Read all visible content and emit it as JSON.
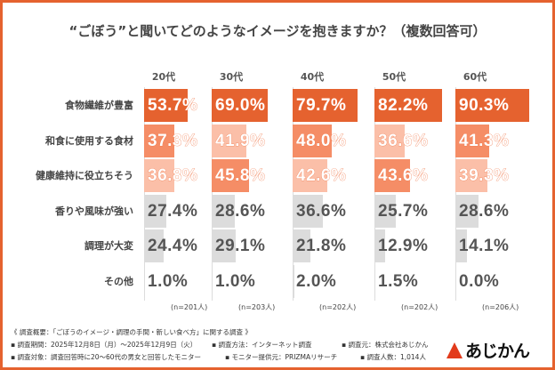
{
  "chart_data": {
    "type": "bar",
    "title": "“ごぼう”と聞いてどのようなイメージを抱きますか？（複数回答可）",
    "categories": [
      "食物繊維が豊富",
      "和食に使用する食材",
      "健康維持に役立ちそう",
      "香りや風味が強い",
      "調理が大変",
      "その他"
    ],
    "unit": "%",
    "xlim": [
      0,
      100
    ],
    "panels": [
      {
        "name": "20代",
        "n": "(n=201人)",
        "values": [
          53.7,
          37.3,
          36.8,
          27.4,
          24.4,
          1.0
        ],
        "labels": [
          "53.7%",
          "37.3%",
          "36.8%",
          "27.4%",
          "24.4%",
          "1.0%"
        ]
      },
      {
        "name": "30代",
        "n": "(n=203人)",
        "values": [
          69.0,
          41.9,
          45.8,
          28.6,
          29.1,
          1.0
        ],
        "labels": [
          "69.0%",
          "41.9%",
          "45.8%",
          "28.6%",
          "29.1%",
          "1.0%"
        ]
      },
      {
        "name": "40代",
        "n": "(n=202人)",
        "values": [
          79.7,
          48.0,
          42.6,
          36.6,
          21.8,
          2.0
        ],
        "labels": [
          "79.7%",
          "48.0%",
          "42.6%",
          "36.6%",
          "21.8%",
          "2.0%"
        ]
      },
      {
        "name": "50代",
        "n": "(n=202人)",
        "values": [
          82.2,
          36.6,
          43.6,
          25.7,
          12.9,
          1.5
        ],
        "labels": [
          "82.2%",
          "36.6%",
          "43.6%",
          "25.7%",
          "12.9%",
          "1.5%"
        ]
      },
      {
        "name": "60代",
        "n": "(n=206人)",
        "values": [
          90.3,
          41.3,
          39.3,
          28.6,
          14.1,
          0.0
        ],
        "labels": [
          "90.3%",
          "41.3%",
          "39.3%",
          "28.6%",
          "14.1%",
          "0.0%"
        ]
      }
    ],
    "colors": {
      "rank1": "#e5622f",
      "rank2": "#f58d66",
      "rank3": "#fbbfa8",
      "other": "#dcdcdc",
      "frame": "#e5622f"
    }
  },
  "footer": {
    "line1": "《 調査概要：「ごぼうのイメージ・調理の手間・新しい食べ方」に関する調査 》",
    "period": "▪ 調査期間：2025年12月8日（月）～2025年12月9日（火）",
    "method": "▪ 調査方法：インターネット調査",
    "org": "▪ 調査元：株式会社あじかん",
    "target": "▪ 調査対象：調査回答時に20～60代の男女と回答したモニター",
    "provider": "▪ モニター提供元：PRIZMAリサーチ",
    "count": "▪ 調査人数：1,014人"
  },
  "logo": {
    "text": "あじかん"
  }
}
